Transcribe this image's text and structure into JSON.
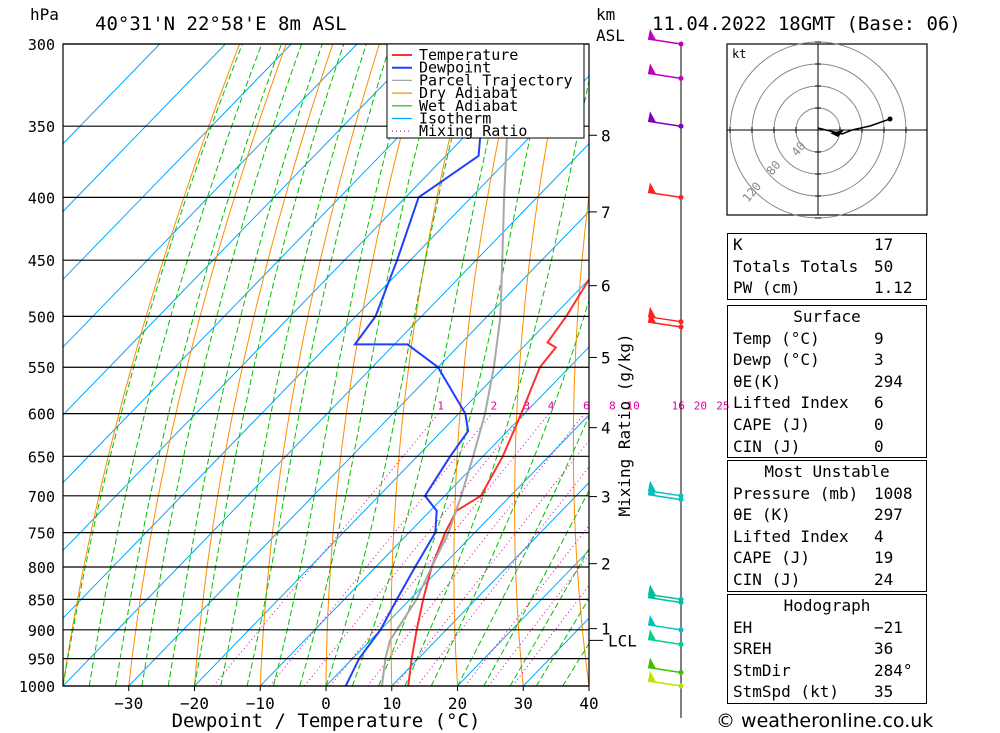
{
  "header": {
    "left_unit": "hPa",
    "location": "40°31'N  22°58'E  8m  ASL",
    "km_label": "km",
    "asl_label": "ASL",
    "datetime": "11.04.2022  18GMT  (Base: 06)"
  },
  "chart_data": {
    "type": "line",
    "xlabel": "Dewpoint / Temperature (°C)",
    "x_ticks": [
      -30,
      -20,
      -10,
      0,
      10,
      20,
      30,
      40
    ],
    "xlim": [
      -40,
      40
    ],
    "ylabel": "hPa",
    "p_levels": [
      300,
      350,
      400,
      450,
      500,
      550,
      600,
      650,
      700,
      750,
      800,
      850,
      900,
      950,
      1000
    ],
    "ylim": [
      1000,
      300
    ],
    "y_scale": "log-pressure",
    "km_ticks": [
      {
        "label": "1",
        "p": 898
      },
      {
        "label": "2",
        "p": 795
      },
      {
        "label": "3",
        "p": 701
      },
      {
        "label": "4",
        "p": 616
      },
      {
        "label": "5",
        "p": 540
      },
      {
        "label": "6",
        "p": 472
      },
      {
        "label": "7",
        "p": 411
      },
      {
        "label": "8",
        "p": 356
      }
    ],
    "lcl": {
      "label": "LCL",
      "p": 918
    },
    "mixing_ratio_axis_label": "Mixing Ratio (g/kg)",
    "mixing_ratios": [
      "1",
      "2",
      "3",
      "4",
      "6",
      "8",
      "10",
      "16",
      "20",
      "25"
    ],
    "mixing_ratio_values": [
      1,
      2,
      3,
      4,
      6,
      8,
      10,
      16,
      20,
      25
    ],
    "legend": [
      "Temperature",
      "Dewpoint",
      "Parcel Trajectory",
      "Dry Adiabat",
      "Wet Adiabat",
      "Isotherm",
      "Mixing Ratio"
    ],
    "legend_position": "top-right",
    "colors": {
      "temperature": "#ff3030",
      "dewpoint": "#2040ff",
      "parcel": "#a8a8a8",
      "dry_adiabat": "#ff8c00",
      "wet_adiabat": "#00c000",
      "isotherm": "#00a8ff",
      "mixing_ratio": "#e000a0"
    },
    "series": [
      {
        "name": "Temperature",
        "points": [
          [
            1000,
            12.5
          ],
          [
            950,
            9
          ],
          [
            900,
            5.5
          ],
          [
            850,
            2
          ],
          [
            800,
            -1.5
          ],
          [
            750,
            -4.5
          ],
          [
            720,
            -6
          ],
          [
            700,
            -4.5
          ],
          [
            650,
            -7
          ],
          [
            600,
            -10.5
          ],
          [
            550,
            -14.5
          ],
          [
            530,
            -15
          ],
          [
            525,
            -17
          ],
          [
            500,
            -18
          ],
          [
            450,
            -21
          ],
          [
            400,
            -25
          ],
          [
            365,
            -30
          ],
          [
            345,
            -30
          ],
          [
            320,
            -33
          ],
          [
            300,
            -38
          ]
        ]
      },
      {
        "name": "Dewpoint",
        "points": [
          [
            1000,
            3
          ],
          [
            950,
            1
          ],
          [
            900,
            0
          ],
          [
            850,
            -2
          ],
          [
            800,
            -4
          ],
          [
            750,
            -6
          ],
          [
            720,
            -9
          ],
          [
            700,
            -13
          ],
          [
            650,
            -15
          ],
          [
            620,
            -16
          ],
          [
            600,
            -19
          ],
          [
            550,
            -30
          ],
          [
            527,
            -38
          ],
          [
            527,
            -46
          ],
          [
            500,
            -47
          ],
          [
            450,
            -52
          ],
          [
            400,
            -58
          ],
          [
            370,
            -55
          ],
          [
            350,
            -59
          ],
          [
            320,
            -61
          ],
          [
            300,
            -58
          ]
        ]
      },
      {
        "name": "Parcel Trajectory",
        "points": [
          [
            1000,
            8.5
          ],
          [
            950,
            5
          ],
          [
            918,
            3
          ],
          [
            850,
            1
          ],
          [
            800,
            -1.5
          ],
          [
            750,
            -4
          ],
          [
            700,
            -7.5
          ],
          [
            650,
            -11.5
          ],
          [
            600,
            -16
          ],
          [
            550,
            -21.5
          ],
          [
            500,
            -28
          ],
          [
            450,
            -36
          ],
          [
            400,
            -45
          ],
          [
            350,
            -55
          ],
          [
            300,
            -66
          ]
        ]
      }
    ],
    "hodograph": {
      "unit_label": "kt",
      "ring_labels": [
        "40",
        "80",
        "120"
      ]
    },
    "wind_barbs": [
      {
        "p": 300,
        "color": "#c000c0"
      },
      {
        "p": 320,
        "color": "#c000c0"
      },
      {
        "p": 350,
        "color": "#8000c0"
      },
      {
        "p": 400,
        "color": "#ff2020"
      },
      {
        "p": 505,
        "color": "#ff2020"
      },
      {
        "p": 510,
        "color": "#ff2020"
      },
      {
        "p": 700,
        "color": "#00c0c0"
      },
      {
        "p": 705,
        "color": "#00c0c0"
      },
      {
        "p": 850,
        "color": "#00c0a0"
      },
      {
        "p": 855,
        "color": "#00c0a0"
      },
      {
        "p": 900,
        "color": "#00c0c0"
      },
      {
        "p": 925,
        "color": "#00d080"
      },
      {
        "p": 975,
        "color": "#40c000"
      },
      {
        "p": 1000,
        "color": "#c0e000"
      }
    ]
  },
  "indices": [
    {
      "k": "K",
      "v": "17"
    },
    {
      "k": "Totals Totals",
      "v": "50"
    },
    {
      "k": "PW (cm)",
      "v": "1.12"
    }
  ],
  "surface": {
    "title": "Surface",
    "rows": [
      {
        "k": "Temp (°C)",
        "v": "9"
      },
      {
        "k": "Dewp (°C)",
        "v": "3"
      },
      {
        "k": "θE(K)",
        "v": "294"
      },
      {
        "k": "Lifted Index",
        "v": "6"
      },
      {
        "k": "CAPE (J)",
        "v": "0"
      },
      {
        "k": "CIN (J)",
        "v": "0"
      }
    ]
  },
  "most_unstable": {
    "title": "Most Unstable",
    "rows": [
      {
        "k": "Pressure (mb)",
        "v": "1008"
      },
      {
        "k": "θE (K)",
        "v": "297"
      },
      {
        "k": "Lifted Index",
        "v": "4"
      },
      {
        "k": "CAPE (J)",
        "v": "19"
      },
      {
        "k": "CIN (J)",
        "v": "24"
      }
    ]
  },
  "hodograph_table": {
    "title": "Hodograph",
    "rows": [
      {
        "k": "EH",
        "v": "-21"
      },
      {
        "k": "SREH",
        "v": "36"
      },
      {
        "k": "StmDir",
        "v": "284°"
      },
      {
        "k": "StmSpd (kt)",
        "v": "35"
      }
    ]
  },
  "footer": "© weatheronline.co.uk"
}
